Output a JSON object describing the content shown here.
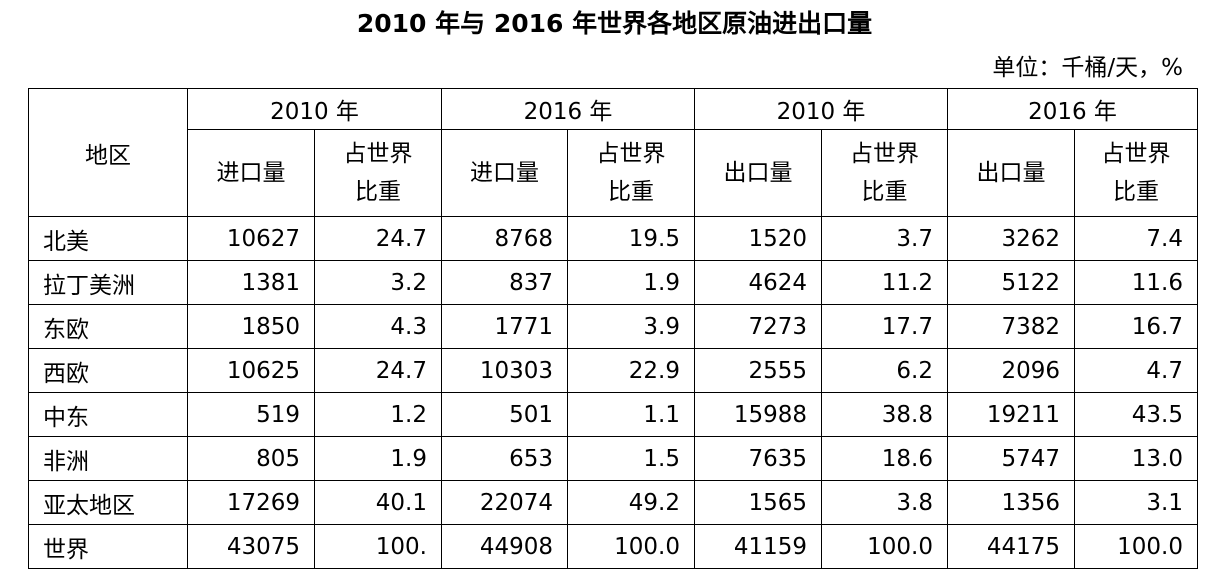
{
  "title": "2010 年与 2016 年世界各地区原油进出口量",
  "unit": "单位：千桶/天，%",
  "table": {
    "region_header": "地区",
    "year_groups": [
      "2010 年",
      "2016 年",
      "2010 年",
      "2016 年"
    ],
    "sub_headers": [
      [
        "进口量"
      ],
      [
        "占世界",
        "比重"
      ],
      [
        "进口量"
      ],
      [
        "占世界",
        "比重"
      ],
      [
        "出口量"
      ],
      [
        "占世界",
        "比重"
      ],
      [
        "出口量"
      ],
      [
        "占世界",
        "比重"
      ]
    ],
    "rows": [
      [
        "北美",
        "10627",
        "24.7",
        "8768",
        "19.5",
        "1520",
        "3.7",
        "3262",
        "7.4"
      ],
      [
        "拉丁美洲",
        "1381",
        "3.2",
        "837",
        "1.9",
        "4624",
        "11.2",
        "5122",
        "11.6"
      ],
      [
        "东欧",
        "1850",
        "4.3",
        "1771",
        "3.9",
        "7273",
        "17.7",
        "7382",
        "16.7"
      ],
      [
        "西欧",
        "10625",
        "24.7",
        "10303",
        "22.9",
        "2555",
        "6.2",
        "2096",
        "4.7"
      ],
      [
        "中东",
        "519",
        "1.2",
        "501",
        "1.1",
        "15988",
        "38.8",
        "19211",
        "43.5"
      ],
      [
        "非洲",
        "805",
        "1.9",
        "653",
        "1.5",
        "7635",
        "18.6",
        "5747",
        "13.0"
      ],
      [
        "亚太地区",
        "17269",
        "40.1",
        "22074",
        "49.2",
        "1565",
        "3.8",
        "1356",
        "3.1"
      ],
      [
        "世界",
        "43075",
        "100.",
        "44908",
        "100.0",
        "41159",
        "100.0",
        "44175",
        "100.0"
      ]
    ]
  }
}
